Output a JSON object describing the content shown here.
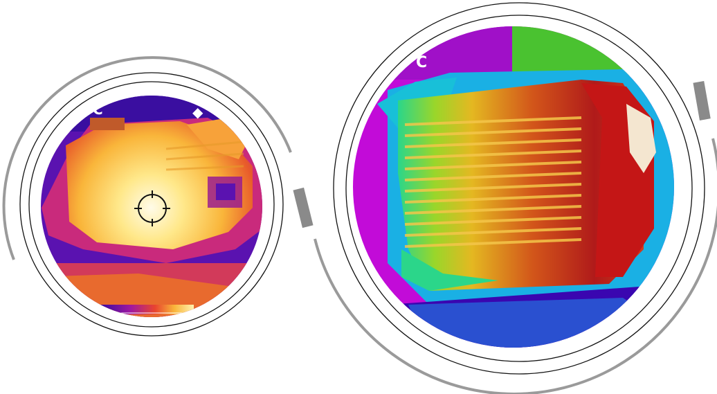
{
  "left_view": {
    "unit_label": "°C",
    "mode_icon": "settings-icon",
    "reticle_icon": "crosshair-icon",
    "palette_name": "iron",
    "palette_colors": [
      "#2a0aa0",
      "#8a10a8",
      "#d4246a",
      "#f26b2a",
      "#f9b53a",
      "#fff2b0"
    ]
  },
  "right_view": {
    "unit_label": "°C",
    "palette_name": "rainbow",
    "palette_colors": [
      "#3a06b0",
      "#c20bd8",
      "#1ab0e4",
      "#2bd68a",
      "#9ad62a",
      "#e4b821",
      "#d23a1a",
      "#b01a1a"
    ]
  }
}
